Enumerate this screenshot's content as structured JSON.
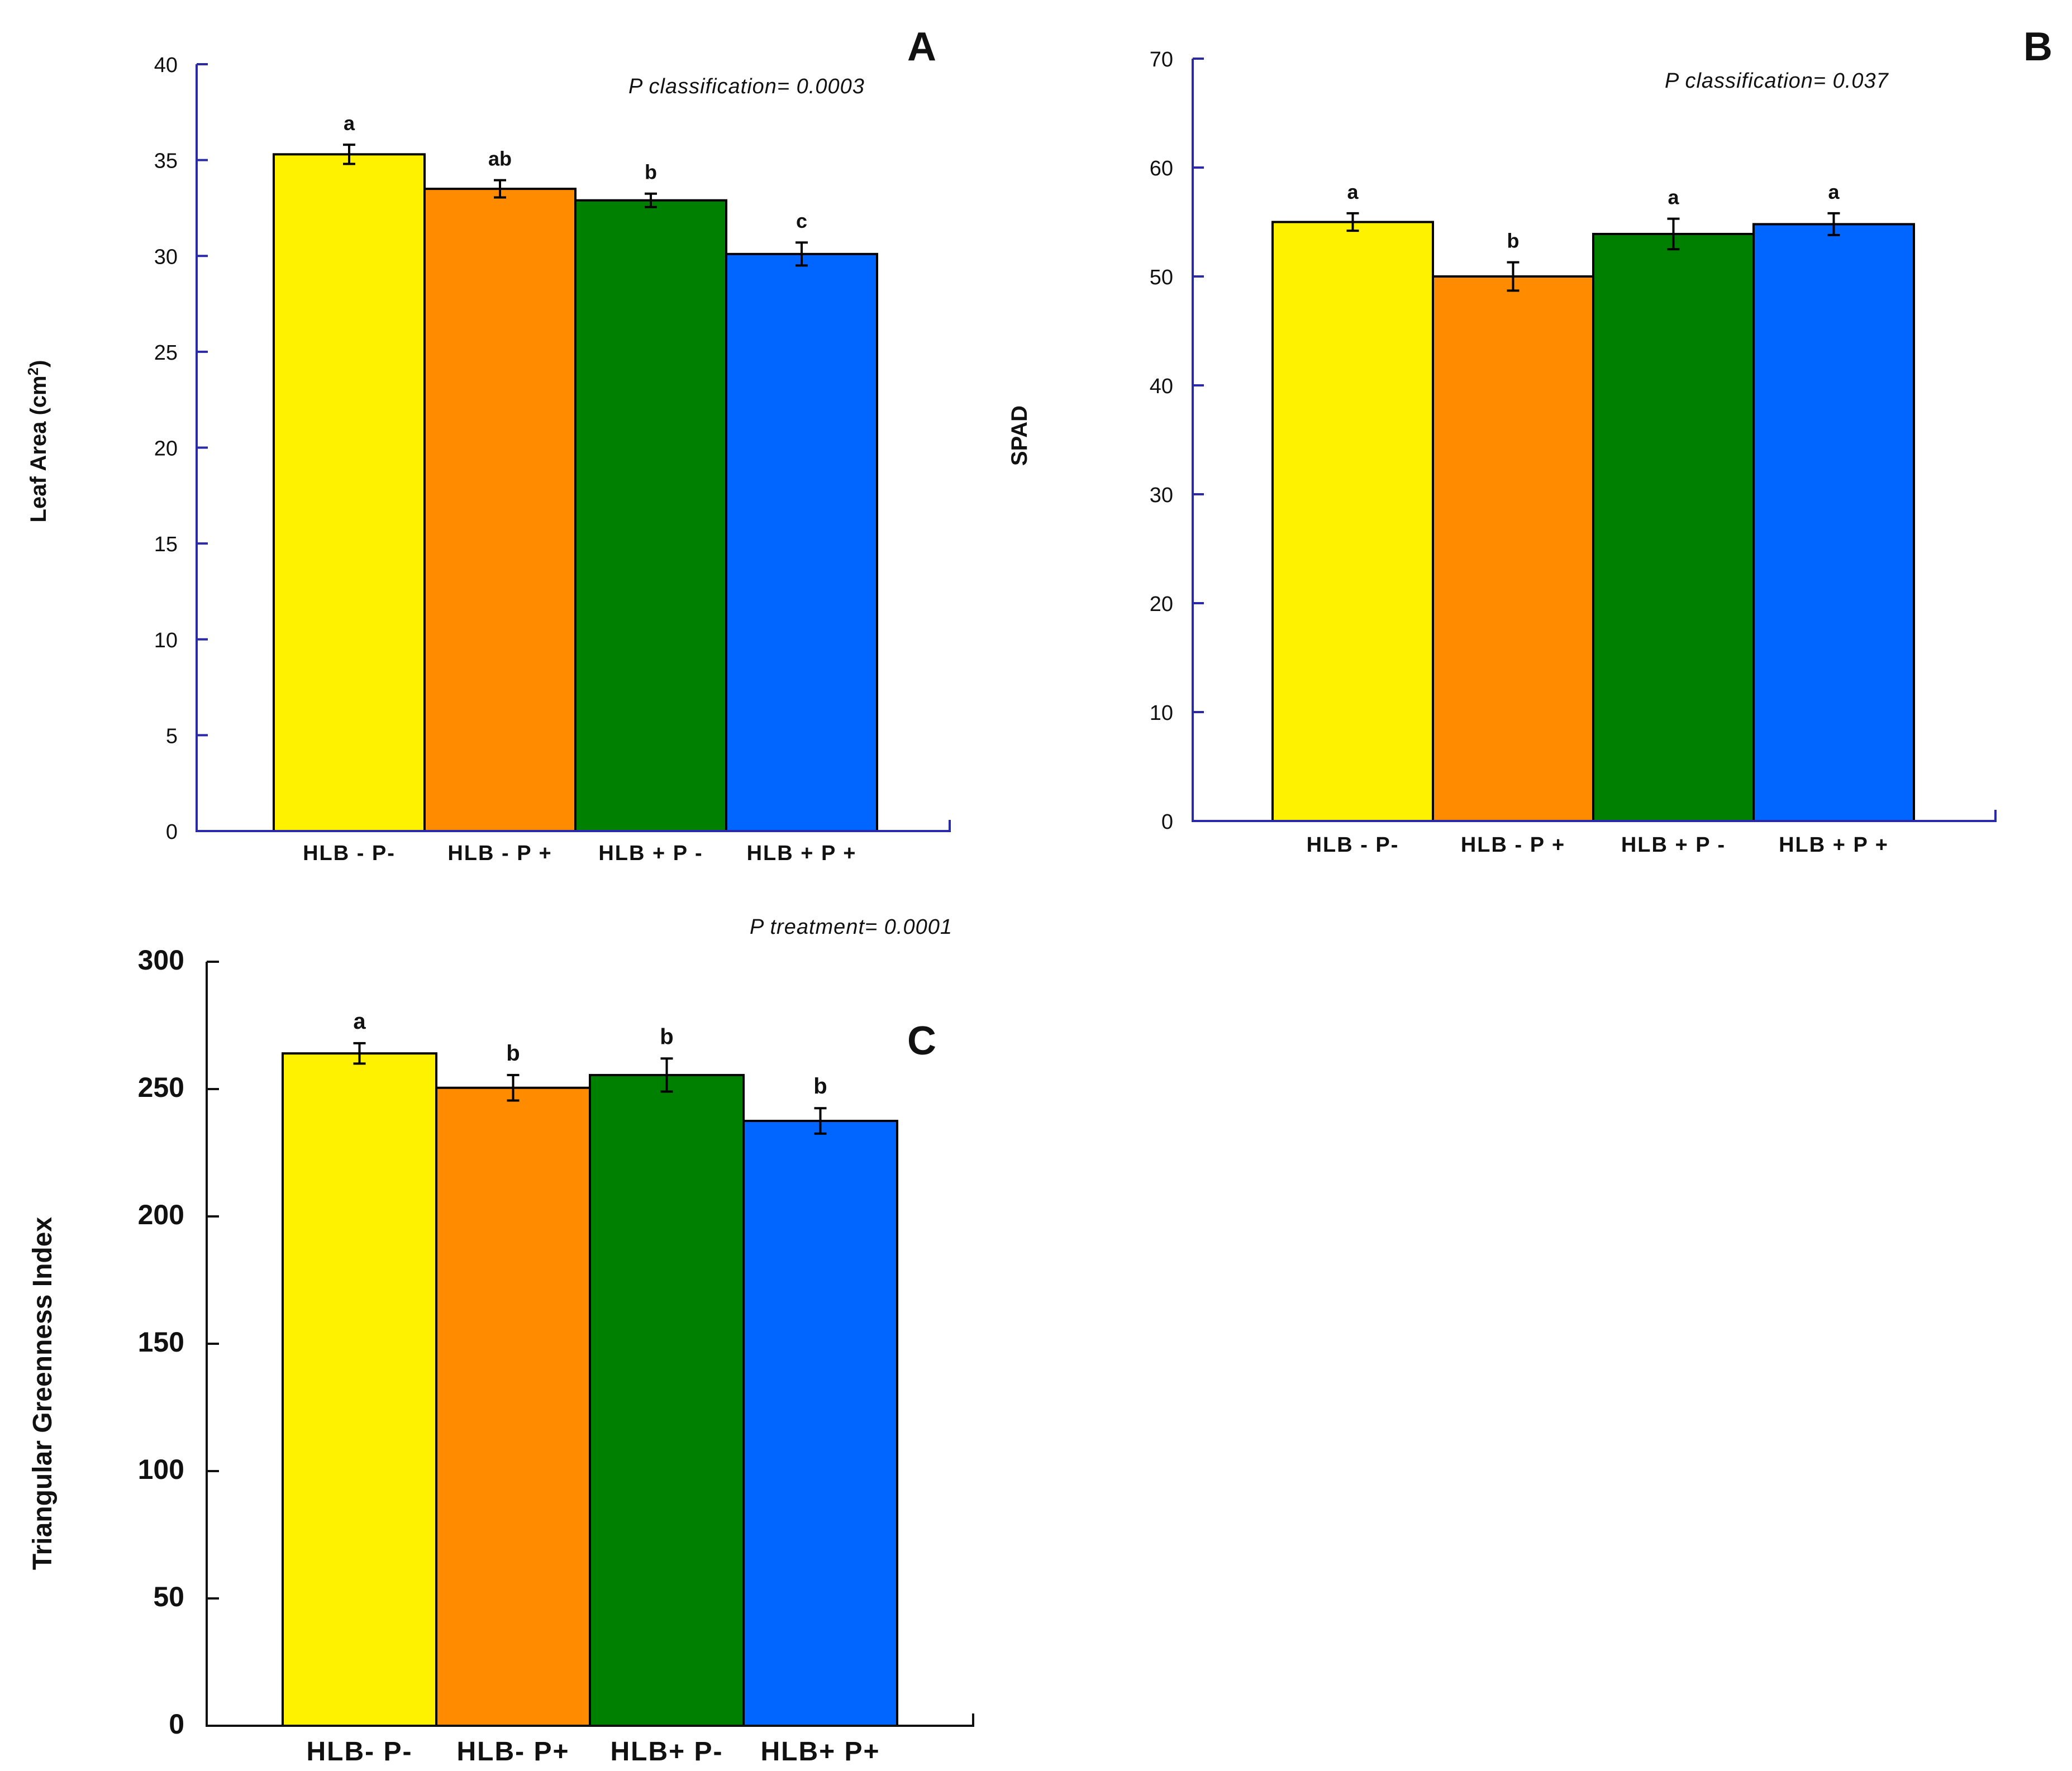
{
  "chart_data": [
    {
      "panel": "A",
      "type": "bar",
      "categories": [
        "HLB - P-",
        "HLB - P +",
        "HLB + P -",
        "HLB + P +"
      ],
      "values": [
        35.3,
        33.5,
        32.9,
        30.1
      ],
      "errors": [
        0.5,
        0.45,
        0.35,
        0.6
      ],
      "letters": [
        "a",
        "ab",
        "b",
        "c"
      ],
      "colors": [
        "#FFF200",
        "#FF8C00",
        "#008000",
        "#0066FF"
      ],
      "ylabel": "Leaf Area (cm",
      "ylabel_sup": "2",
      "ylabel_close": ")",
      "ylim": [
        0,
        40
      ],
      "yticks": [
        0,
        5,
        10,
        15,
        20,
        25,
        30,
        35,
        40
      ],
      "note": "P classification= 0.0003",
      "panel_label": "A"
    },
    {
      "panel": "B",
      "type": "bar",
      "categories": [
        "HLB - P-",
        "HLB - P +",
        "HLB + P -",
        "HLB + P +"
      ],
      "values": [
        55,
        50,
        53.9,
        54.8
      ],
      "errors": [
        0.8,
        1.3,
        1.4,
        1.0
      ],
      "letters": [
        "a",
        "b",
        "a",
        "a"
      ],
      "colors": [
        "#FFF200",
        "#FF8C00",
        "#008000",
        "#0066FF"
      ],
      "ylabel": "SPAD",
      "ylim": [
        0,
        70
      ],
      "yticks": [
        0,
        10,
        20,
        30,
        40,
        50,
        60,
        70
      ],
      "note": "P classification= 0.037",
      "panel_label": "B"
    },
    {
      "panel": "C",
      "type": "bar",
      "categories": [
        "HLB- P-",
        "HLB- P+",
        "HLB+ P-",
        "HLB+ P+"
      ],
      "values": [
        264,
        250.5,
        255.5,
        237.5
      ],
      "errors": [
        4,
        5,
        6.5,
        5
      ],
      "letters": [
        "a",
        "b",
        "b",
        "b"
      ],
      "colors": [
        "#FFF200",
        "#FF8C00",
        "#008000",
        "#0066FF"
      ],
      "ylabel": "Triangular Greenness Index",
      "ylim": [
        0,
        300
      ],
      "yticks": [
        0,
        50,
        100,
        150,
        200,
        250,
        300
      ],
      "note": "P treatment= 0.0001",
      "panel_label": "C"
    }
  ]
}
